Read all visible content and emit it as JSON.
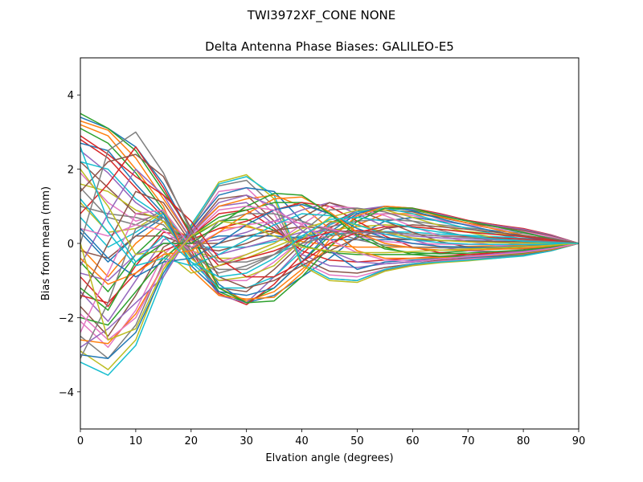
{
  "figure": {
    "suptitle": "TWI3972XF_CONE  NONE"
  },
  "chart_data": {
    "type": "line",
    "title": "Delta Antenna Phase Biases: GALILEO-E5",
    "xlabel": "Elvation angle (degrees)",
    "ylabel": "Bias from mean (mm)",
    "xlim": [
      0,
      90
    ],
    "ylim": [
      -5,
      5
    ],
    "xticks": [
      0,
      10,
      20,
      30,
      40,
      50,
      60,
      70,
      80,
      90
    ],
    "yticks": [
      -4,
      -2,
      0,
      2,
      4
    ],
    "xtick_labels": [
      "0",
      "10",
      "20",
      "30",
      "40",
      "50",
      "60",
      "70",
      "80",
      "90"
    ],
    "ytick_labels": [
      "−4",
      "−2",
      "0",
      "2",
      "4"
    ],
    "grid": false,
    "legend": "none",
    "x": [
      0,
      5,
      10,
      15,
      20,
      25,
      30,
      35,
      40,
      45,
      50,
      55,
      60,
      65,
      70,
      75,
      80,
      85,
      90
    ],
    "palette": [
      "#1f77b4",
      "#ff7f0e",
      "#2ca02c",
      "#d62728",
      "#9467bd",
      "#8c564b",
      "#e377c2",
      "#7f7f7f",
      "#bcbd22",
      "#17becf"
    ],
    "series": [
      {
        "values": [
          3.4,
          3.1,
          2.6,
          1.6,
          0.2,
          -1.1,
          -1.6,
          -1.4,
          -0.9,
          -0.4,
          0.2,
          0.6,
          0.7,
          0.6,
          0.5,
          0.4,
          0.3,
          0.2,
          0
        ]
      },
      {
        "values": [
          3.3,
          3.05,
          2.3,
          1.2,
          0.1,
          -1.2,
          -1.55,
          -1.3,
          -0.7,
          -0.1,
          0.5,
          0.8,
          0.8,
          0.7,
          0.55,
          0.45,
          0.35,
          0.2,
          0
        ]
      },
      {
        "values": [
          3.1,
          2.7,
          1.9,
          0.9,
          -0.1,
          -1.3,
          -1.6,
          -1.2,
          -0.5,
          0.2,
          0.7,
          0.95,
          0.9,
          0.75,
          0.6,
          0.5,
          0.38,
          0.22,
          0
        ]
      },
      {
        "values": [
          2.8,
          2.3,
          1.5,
          0.7,
          -0.2,
          -1.35,
          -1.65,
          -1.1,
          -0.3,
          0.4,
          0.85,
          1.0,
          0.95,
          0.8,
          0.62,
          0.5,
          0.4,
          0.23,
          0
        ]
      },
      {
        "values": [
          2.5,
          1.9,
          1.1,
          0.6,
          -0.3,
          -1.4,
          -1.6,
          -0.9,
          -0.1,
          0.5,
          0.9,
          1.0,
          0.92,
          0.78,
          0.6,
          0.48,
          0.38,
          0.22,
          0
        ]
      },
      {
        "values": [
          2.2,
          1.5,
          0.8,
          0.7,
          -0.35,
          -1.2,
          -1.3,
          -0.7,
          0.0,
          0.55,
          0.85,
          0.9,
          0.85,
          0.7,
          0.55,
          0.45,
          0.35,
          0.2,
          0
        ]
      },
      {
        "values": [
          1.9,
          1.1,
          0.6,
          0.8,
          -0.4,
          -1.0,
          -1.0,
          -0.5,
          0.1,
          0.5,
          0.75,
          0.8,
          0.75,
          0.62,
          0.5,
          0.4,
          0.32,
          0.18,
          0
        ]
      },
      {
        "values": [
          1.5,
          0.7,
          0.5,
          0.9,
          -0.3,
          -0.7,
          -0.7,
          -0.3,
          0.15,
          0.45,
          0.6,
          0.65,
          0.6,
          0.5,
          0.42,
          0.34,
          0.27,
          0.15,
          0
        ]
      },
      {
        "values": [
          1.1,
          0.3,
          0.4,
          0.85,
          -0.2,
          -0.4,
          -0.4,
          -0.1,
          0.2,
          0.35,
          0.45,
          0.5,
          0.45,
          0.38,
          0.32,
          0.26,
          0.2,
          0.12,
          0
        ]
      },
      {
        "values": [
          0.7,
          -0.1,
          0.3,
          0.8,
          -0.1,
          -0.1,
          -0.1,
          0.05,
          0.2,
          0.25,
          0.3,
          0.32,
          0.3,
          0.25,
          0.22,
          0.18,
          0.14,
          0.08,
          0
        ]
      },
      {
        "values": [
          0.3,
          -0.5,
          0.2,
          0.7,
          0.0,
          0.2,
          0.2,
          0.2,
          0.15,
          0.1,
          0.1,
          0.1,
          0.1,
          0.08,
          0.07,
          0.06,
          0.05,
          0.03,
          0
        ]
      },
      {
        "values": [
          -0.1,
          -0.9,
          0.0,
          0.6,
          0.1,
          0.4,
          0.45,
          0.3,
          0.05,
          -0.05,
          -0.1,
          -0.1,
          -0.1,
          -0.1,
          -0.08,
          -0.06,
          -0.05,
          -0.03,
          0
        ]
      },
      {
        "values": [
          -0.5,
          -1.3,
          -0.3,
          0.4,
          0.15,
          0.6,
          0.65,
          0.35,
          -0.05,
          -0.25,
          -0.3,
          -0.3,
          -0.3,
          -0.25,
          -0.2,
          -0.15,
          -0.12,
          -0.07,
          0
        ]
      },
      {
        "values": [
          -0.9,
          -1.7,
          -0.6,
          0.3,
          0.2,
          0.8,
          0.9,
          0.4,
          -0.2,
          -0.45,
          -0.5,
          -0.45,
          -0.4,
          -0.35,
          -0.3,
          -0.25,
          -0.2,
          -0.12,
          0
        ]
      },
      {
        "values": [
          -1.3,
          -2.1,
          -1.0,
          0.1,
          0.25,
          1.0,
          1.1,
          0.5,
          -0.3,
          -0.6,
          -0.65,
          -0.55,
          -0.5,
          -0.42,
          -0.36,
          -0.3,
          -0.25,
          -0.15,
          0
        ]
      },
      {
        "values": [
          -1.7,
          -2.5,
          -1.4,
          -0.1,
          0.3,
          1.2,
          1.3,
          0.6,
          -0.4,
          -0.75,
          -0.8,
          -0.65,
          -0.55,
          -0.45,
          -0.4,
          -0.34,
          -0.28,
          -0.17,
          0
        ]
      },
      {
        "values": [
          -2.1,
          -2.8,
          -1.8,
          -0.3,
          0.35,
          1.4,
          1.5,
          0.8,
          -0.5,
          -0.85,
          -0.9,
          -0.7,
          -0.55,
          -0.48,
          -0.42,
          -0.36,
          -0.3,
          -0.18,
          0
        ]
      },
      {
        "values": [
          -2.5,
          -3.1,
          -2.2,
          -0.5,
          0.4,
          1.55,
          1.7,
          1.0,
          -0.55,
          -0.95,
          -1.0,
          -0.72,
          -0.58,
          -0.5,
          -0.45,
          -0.38,
          -0.32,
          -0.19,
          0
        ]
      },
      {
        "values": [
          -2.9,
          -3.4,
          -2.6,
          -0.7,
          0.45,
          1.65,
          1.85,
          1.2,
          -0.6,
          -1.0,
          -1.05,
          -0.75,
          -0.6,
          -0.52,
          -0.47,
          -0.4,
          -0.33,
          -0.2,
          0
        ]
      },
      {
        "values": [
          -3.2,
          -3.55,
          -2.75,
          -0.9,
          0.5,
          1.6,
          1.8,
          1.3,
          -0.55,
          -0.95,
          -1.0,
          -0.7,
          -0.55,
          -0.5,
          -0.45,
          -0.4,
          -0.34,
          -0.2,
          0
        ]
      },
      {
        "values": [
          -3.0,
          -3.1,
          -2.4,
          -0.8,
          0.4,
          1.3,
          1.5,
          1.4,
          0.6,
          -0.2,
          -0.7,
          -0.5,
          -0.45,
          -0.4,
          -0.38,
          -0.35,
          -0.3,
          -0.18,
          0
        ]
      },
      {
        "values": [
          -2.6,
          -2.7,
          -1.9,
          -0.6,
          0.3,
          1.0,
          1.2,
          1.3,
          1.0,
          0.4,
          -0.2,
          -0.4,
          -0.4,
          -0.38,
          -0.36,
          -0.32,
          -0.28,
          -0.17,
          0
        ]
      },
      {
        "values": [
          -2.0,
          -2.2,
          -1.3,
          -0.4,
          0.2,
          0.7,
          0.9,
          1.1,
          1.1,
          0.8,
          0.3,
          -0.1,
          -0.3,
          -0.35,
          -0.34,
          -0.3,
          -0.26,
          -0.15,
          0
        ]
      },
      {
        "values": [
          -1.4,
          -1.6,
          -0.8,
          -0.2,
          0.1,
          0.4,
          0.6,
          0.9,
          1.1,
          1.0,
          0.6,
          0.2,
          -0.1,
          -0.25,
          -0.3,
          -0.28,
          -0.24,
          -0.14,
          0
        ]
      },
      {
        "values": [
          -0.8,
          -1.0,
          -0.3,
          0.0,
          0.0,
          0.1,
          0.3,
          0.6,
          0.9,
          1.1,
          0.8,
          0.45,
          0.1,
          -0.1,
          -0.2,
          -0.22,
          -0.2,
          -0.12,
          0
        ]
      },
      {
        "values": [
          -0.2,
          -0.4,
          0.2,
          0.2,
          -0.1,
          -0.2,
          0.0,
          0.3,
          0.7,
          1.1,
          0.9,
          0.6,
          0.3,
          0.05,
          -0.1,
          -0.15,
          -0.15,
          -0.1,
          0
        ]
      },
      {
        "values": [
          0.4,
          0.2,
          0.5,
          0.35,
          -0.2,
          -0.5,
          -0.3,
          0.0,
          0.5,
          1.0,
          0.95,
          0.75,
          0.45,
          0.2,
          0.05,
          -0.05,
          -0.1,
          -0.08,
          0
        ]
      },
      {
        "values": [
          1.0,
          0.8,
          0.7,
          0.5,
          -0.3,
          -0.8,
          -0.6,
          -0.3,
          0.3,
          0.9,
          0.95,
          0.85,
          0.6,
          0.35,
          0.18,
          0.05,
          -0.03,
          -0.05,
          0
        ]
      },
      {
        "values": [
          1.6,
          1.4,
          0.9,
          0.6,
          -0.4,
          -1.0,
          -0.9,
          -0.6,
          0.1,
          0.7,
          0.9,
          0.9,
          0.7,
          0.48,
          0.3,
          0.15,
          0.05,
          -0.02,
          0
        ]
      },
      {
        "values": [
          2.2,
          2.0,
          1.2,
          0.7,
          -0.5,
          -1.2,
          -1.2,
          -0.9,
          -0.2,
          0.5,
          0.85,
          0.95,
          0.8,
          0.58,
          0.4,
          0.25,
          0.12,
          0.02,
          0
        ]
      },
      {
        "values": [
          2.7,
          2.5,
          1.6,
          0.8,
          -0.6,
          -1.3,
          -1.4,
          -1.2,
          -0.5,
          0.3,
          0.8,
          1.0,
          0.88,
          0.66,
          0.48,
          0.32,
          0.18,
          0.06,
          0
        ]
      },
      {
        "values": [
          3.2,
          2.9,
          2.0,
          1.0,
          -0.7,
          -1.4,
          -1.5,
          -1.45,
          -0.8,
          0.1,
          0.75,
          1.0,
          0.95,
          0.72,
          0.55,
          0.38,
          0.22,
          0.08,
          0
        ]
      },
      {
        "values": [
          3.5,
          3.1,
          2.5,
          1.4,
          0.3,
          -1.2,
          -1.6,
          -1.55,
          -0.9,
          -0.1,
          0.6,
          0.95,
          0.95,
          0.75,
          0.6,
          0.45,
          0.3,
          0.12,
          0
        ]
      },
      {
        "values": [
          0.8,
          1.6,
          2.6,
          1.5,
          0.2,
          -0.6,
          -0.4,
          -0.2,
          0.1,
          0.3,
          0.35,
          0.3,
          0.25,
          0.2,
          0.18,
          0.15,
          0.12,
          0.07,
          0
        ]
      },
      {
        "values": [
          -0.6,
          0.8,
          2.0,
          1.3,
          0.1,
          -0.3,
          -0.1,
          0.1,
          0.3,
          0.35,
          0.3,
          0.25,
          0.2,
          0.15,
          0.12,
          0.1,
          0.08,
          0.05,
          0
        ]
      },
      {
        "values": [
          -1.5,
          0.0,
          1.4,
          1.1,
          0.0,
          0.0,
          0.2,
          0.35,
          0.45,
          0.4,
          0.25,
          0.15,
          0.1,
          0.08,
          0.06,
          0.05,
          0.04,
          0.02,
          0
        ]
      },
      {
        "values": [
          -2.4,
          -0.8,
          0.8,
          0.9,
          -0.1,
          0.3,
          0.5,
          0.6,
          0.55,
          0.4,
          0.2,
          0.05,
          0.0,
          -0.02,
          -0.03,
          -0.03,
          -0.02,
          -0.01,
          0
        ]
      },
      {
        "values": [
          -3.1,
          -1.6,
          0.4,
          0.7,
          -0.2,
          0.6,
          0.8,
          0.8,
          0.6,
          0.35,
          0.1,
          -0.05,
          -0.1,
          -0.12,
          -0.12,
          -0.1,
          -0.08,
          -0.05,
          0
        ]
      },
      {
        "values": [
          2.0,
          1.0,
          -0.3,
          -0.2,
          -0.8,
          -0.6,
          -0.3,
          0.0,
          0.4,
          0.6,
          0.5,
          0.3,
          0.15,
          0.08,
          0.04,
          0.02,
          0.01,
          0.0,
          0
        ]
      },
      {
        "values": [
          1.2,
          0.3,
          -0.6,
          -0.4,
          -0.6,
          -0.3,
          0.1,
          0.5,
          0.8,
          0.75,
          0.5,
          0.25,
          0.1,
          0.02,
          -0.02,
          -0.03,
          -0.03,
          -0.02,
          0
        ]
      },
      {
        "values": [
          0.4,
          -0.4,
          -0.9,
          -0.5,
          -0.4,
          0.0,
          0.5,
          0.9,
          1.05,
          0.8,
          0.4,
          0.15,
          0.0,
          -0.08,
          -0.1,
          -0.1,
          -0.08,
          -0.05,
          0
        ]
      },
      {
        "values": [
          -0.4,
          -1.1,
          -0.8,
          -0.3,
          -0.2,
          0.3,
          0.8,
          1.2,
          1.25,
          0.85,
          0.3,
          0.0,
          -0.12,
          -0.18,
          -0.18,
          -0.16,
          -0.13,
          -0.08,
          0
        ]
      },
      {
        "values": [
          -1.2,
          -1.8,
          -0.5,
          0.0,
          0.0,
          0.5,
          1.0,
          1.35,
          1.3,
          0.8,
          0.2,
          -0.15,
          -0.25,
          -0.28,
          -0.26,
          -0.22,
          -0.18,
          -0.1,
          0
        ]
      },
      {
        "values": [
          2.9,
          2.4,
          1.8,
          1.3,
          0.6,
          -0.4,
          -0.9,
          -0.9,
          -0.5,
          0.0,
          0.3,
          0.45,
          0.45,
          0.38,
          0.3,
          0.24,
          0.18,
          0.1,
          0
        ]
      },
      {
        "values": [
          -2.8,
          -2.3,
          -1.6,
          -0.9,
          0.3,
          1.1,
          1.3,
          1.0,
          0.35,
          -0.2,
          -0.5,
          -0.55,
          -0.5,
          -0.42,
          -0.35,
          -0.28,
          -0.22,
          -0.13,
          0
        ]
      },
      {
        "values": [
          1.4,
          2.2,
          2.4,
          1.8,
          0.4,
          -0.9,
          -1.2,
          -1.0,
          -0.6,
          -0.2,
          0.15,
          0.4,
          0.5,
          0.45,
          0.38,
          0.3,
          0.22,
          0.12,
          0
        ]
      },
      {
        "values": [
          -1.9,
          -2.6,
          -2.0,
          -0.6,
          0.2,
          0.9,
          1.0,
          0.9,
          0.5,
          0.1,
          -0.25,
          -0.45,
          -0.48,
          -0.42,
          -0.36,
          -0.3,
          -0.24,
          -0.14,
          0
        ]
      },
      {
        "values": [
          0.0,
          2.5,
          3.0,
          1.9,
          0.3,
          -0.5,
          -0.5,
          -0.3,
          0.0,
          0.2,
          0.3,
          0.3,
          0.25,
          0.2,
          0.16,
          0.12,
          0.09,
          0.05,
          0
        ]
      },
      {
        "values": [
          0.0,
          -2.6,
          -2.3,
          -0.7,
          0.2,
          0.6,
          0.5,
          0.2,
          -0.1,
          -0.2,
          -0.25,
          -0.25,
          -0.22,
          -0.18,
          -0.15,
          -0.12,
          -0.09,
          -0.05,
          0
        ]
      },
      {
        "values": [
          2.6,
          0.6,
          -0.5,
          0.2,
          -0.5,
          -0.9,
          -0.8,
          -0.4,
          0.2,
          0.65,
          0.7,
          0.6,
          0.42,
          0.3,
          0.2,
          0.12,
          0.06,
          0.02,
          0
        ]
      }
    ]
  }
}
